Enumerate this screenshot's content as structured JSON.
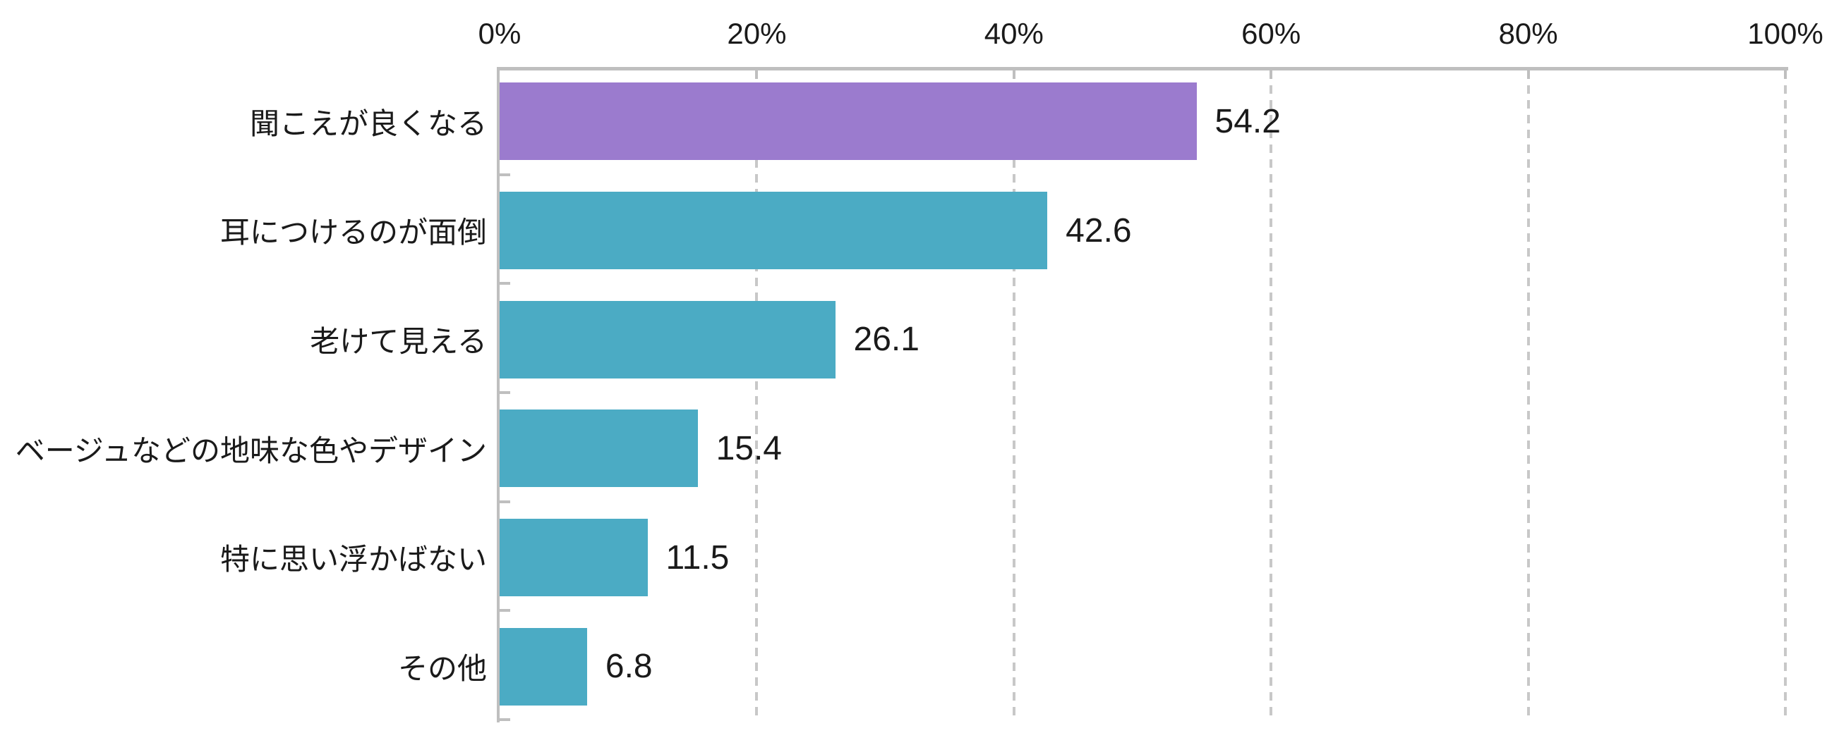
{
  "chart_data": {
    "type": "bar",
    "orientation": "horizontal",
    "title": "",
    "legend": "none",
    "categories": [
      "聞こえが良くなる",
      "耳につけるのが面倒",
      "老けて見える",
      "ベージュなどの地味な色やデザイン",
      "特に思い浮かばない",
      "その他"
    ],
    "values": [
      54.2,
      42.6,
      26.1,
      15.4,
      11.5,
      6.8
    ],
    "value_labels": [
      "54.2",
      "42.6",
      "26.1",
      "15.4",
      "11.5",
      "6.8"
    ],
    "x_axis": {
      "position": "top",
      "min": 0,
      "max": 100,
      "tick_step": 20,
      "tick_labels": [
        "0%",
        "20%",
        "40%",
        "60%",
        "80%",
        "100%"
      ]
    },
    "grid": {
      "vertical_gridlines": true,
      "style": "dashed"
    },
    "colors": {
      "bar_fill": [
        "#9B7BCE",
        "#4BABC4",
        "#4BABC4",
        "#4BABC4",
        "#4BABC4",
        "#4BABC4"
      ],
      "highlight_bar": "#9B7BCE",
      "default_bar": "#4BABC4",
      "axis_line": "#BFBFBF",
      "gridline": "#C8C8C8",
      "text": "#1A1A1A",
      "background": "#FFFFFF"
    }
  }
}
